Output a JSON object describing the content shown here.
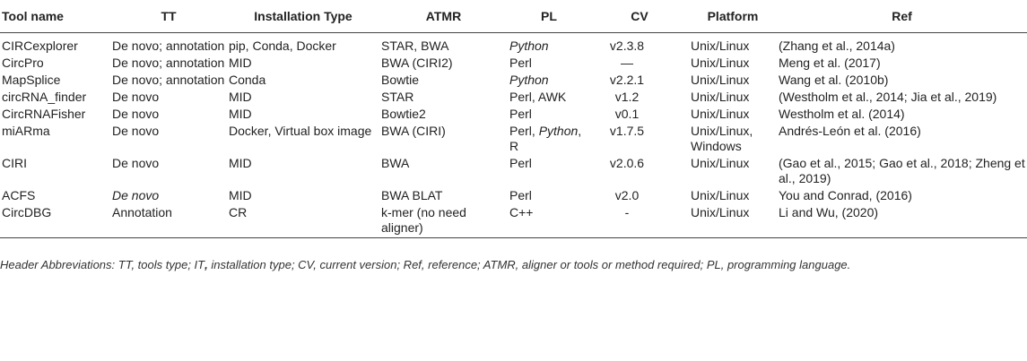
{
  "table": {
    "header": [
      "Tool name",
      "TT",
      "Installation Type",
      "ATMR",
      "PL",
      "CV",
      "Platform",
      "Ref"
    ],
    "rows": [
      [
        "CIRCexplorer",
        "De novo; annotation",
        "pip, Conda, Docker",
        "STAR, BWA",
        [
          {
            "text": "Python",
            "italic": true
          }
        ],
        "v2.3.8",
        "Unix/Linux",
        "(Zhang et al., 2014a)"
      ],
      [
        "CircPro",
        "De novo; annotation",
        "MID",
        "BWA (CIRI2)",
        "Perl",
        "—",
        "Unix/Linux",
        "Meng et al. (2017)"
      ],
      [
        "MapSplice",
        "De novo; annotation",
        "Conda",
        "Bowtie",
        [
          {
            "text": "Python",
            "italic": true
          }
        ],
        "v2.2.1",
        "Unix/Linux",
        "Wang et al. (2010b)"
      ],
      [
        "circRNA_finder",
        "De novo",
        "MID",
        "STAR",
        "Perl, AWK",
        "v1.2",
        "Unix/Linux",
        "(Westholm et al., 2014; Jia et al., 2019)"
      ],
      [
        "CircRNAFisher",
        "De novo",
        "MID",
        "Bowtie2",
        "Perl",
        "v0.1",
        "Unix/Linux",
        "Westholm et al. (2014)"
      ],
      [
        "miARma",
        "De novo",
        "Docker, Virtual box image",
        "BWA (CIRI)",
        [
          {
            "text": "Perl, "
          },
          {
            "text": "Python",
            "italic": true
          },
          {
            "text": ", R"
          }
        ],
        "v1.7.5",
        "Unix/Linux, Windows",
        "Andrés-León et al. (2016)"
      ],
      [
        "CIRI",
        "De novo",
        "MID",
        "BWA",
        "Perl",
        "v2.0.6",
        "Unix/Linux",
        "(Gao et al., 2015; Gao et al., 2018; Zheng et al., 2019)"
      ],
      [
        "ACFS",
        [
          {
            "text": "De novo",
            "italic": true
          }
        ],
        "MID",
        "BWA BLAT",
        "Perl",
        "v2.0",
        "Unix/Linux",
        "You and Conrad, (2016)"
      ],
      [
        "CircDBG",
        "Annotation",
        "CR",
        "k-mer (no need aligner)",
        "C++",
        "-",
        "Unix/Linux",
        "Li and Wu, (2020)"
      ]
    ],
    "footnote": [
      {
        "text": "Header Abbreviations: TT, tools type; IT"
      },
      {
        "text": ",",
        "bold": true
      },
      {
        "text": " installation type; CV, current version; Ref, reference; ATMR, aligner or tools or method required; PL, programming language."
      }
    ]
  }
}
